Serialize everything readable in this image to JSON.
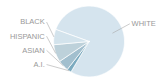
{
  "chart_data": {
    "type": "pie",
    "categories": [
      "WHITE",
      "A.I.",
      "ASIAN",
      "HISPANIC",
      "BLACK"
    ],
    "values": [
      78,
      2,
      5,
      8,
      7
    ],
    "colors": [
      "#d5e4ee",
      "#7baabf",
      "#a2bfce",
      "#bdd1da",
      "#d3e3ec"
    ]
  }
}
